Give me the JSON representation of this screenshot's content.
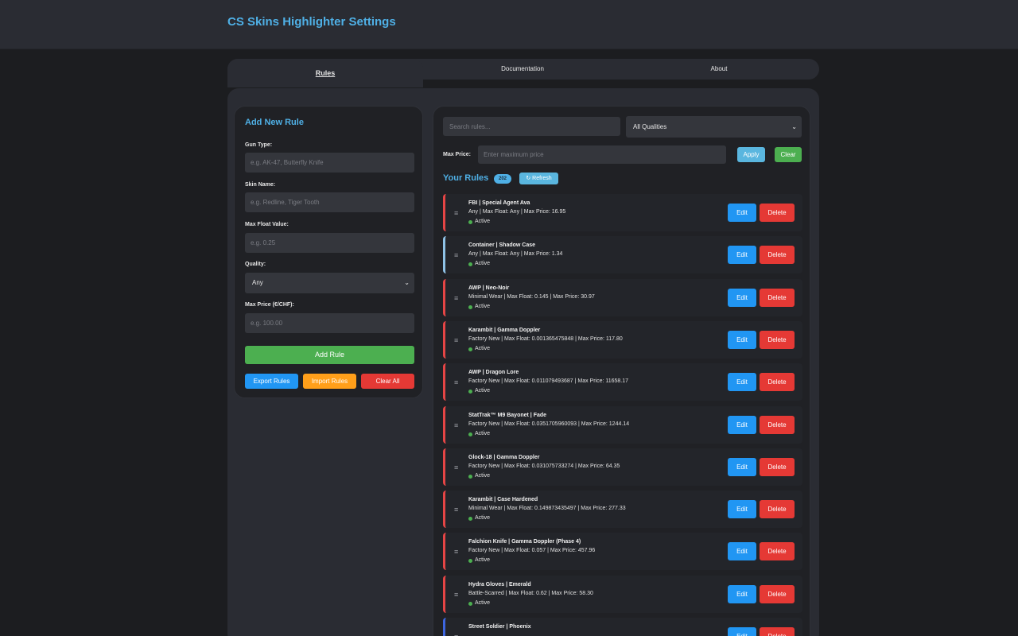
{
  "header": {
    "title": "CS Skins Highlighter Settings"
  },
  "tabs": [
    {
      "label": "Rules",
      "active": true
    },
    {
      "label": "Documentation",
      "active": false
    },
    {
      "label": "About",
      "active": false
    }
  ],
  "add_rule": {
    "title": "Add New Rule",
    "gun_type": {
      "label": "Gun Type:",
      "placeholder": "e.g. AK-47, Butterfly Knife"
    },
    "skin_name": {
      "label": "Skin Name:",
      "placeholder": "e.g. Redline, Tiger Tooth"
    },
    "max_float": {
      "label": "Max Float Value:",
      "placeholder": "e.g. 0.25"
    },
    "quality": {
      "label": "Quality:",
      "value": "Any"
    },
    "max_price": {
      "label": "Max Price (€/CHF):",
      "placeholder": "e.g. 100.00"
    },
    "add_button": "Add Rule",
    "export_button": "Export Rules",
    "import_button": "Import Rules",
    "clear_all_button": "Clear All"
  },
  "filters": {
    "search_placeholder": "Search rules...",
    "quality_value": "All Qualities",
    "max_price_label": "Max Price:",
    "max_price_placeholder": "Enter maximum price",
    "apply_button": "Apply",
    "clear_button": "Clear"
  },
  "rules_header": {
    "title": "Your Rules",
    "count": "202",
    "refresh": "Refresh"
  },
  "rules": [
    {
      "name": "FBI | Special Agent Ava",
      "details": "Any | Max Float: Any | Max Price: 16.95",
      "status": "Active",
      "edit": "Edit",
      "delete": "Delete"
    },
    {
      "name": "Container | Shadow Case",
      "details": "Any | Max Float: Any | Max Price: 1.34",
      "status": "Active",
      "edit": "Edit",
      "delete": "Delete"
    },
    {
      "name": "AWP | Neo-Noir",
      "details": "Minimal Wear | Max Float: 0.145 | Max Price: 30.97",
      "status": "Active",
      "edit": "Edit",
      "delete": "Delete"
    },
    {
      "name": "Karambit | Gamma Doppler",
      "details": "Factory New | Max Float: 0.001365475848 | Max Price: 117.80",
      "status": "Active",
      "edit": "Edit",
      "delete": "Delete"
    },
    {
      "name": "AWP | Dragon Lore",
      "details": "Factory New | Max Float: 0.011079493687 | Max Price: 11658.17",
      "status": "Active",
      "edit": "Edit",
      "delete": "Delete"
    },
    {
      "name": "StatTrak™ M9 Bayonet | Fade",
      "details": "Factory New | Max Float: 0.0351705960093 | Max Price: 1244.14",
      "status": "Active",
      "edit": "Edit",
      "delete": "Delete"
    },
    {
      "name": "Glock-18 | Gamma Doppler",
      "details": "Factory New | Max Float: 0.031075733274 | Max Price: 64.35",
      "status": "Active",
      "edit": "Edit",
      "delete": "Delete"
    },
    {
      "name": "Karambit | Case Hardened",
      "details": "Minimal Wear | Max Float: 0.149873435497 | Max Price: 277.33",
      "status": "Active",
      "edit": "Edit",
      "delete": "Delete"
    },
    {
      "name": "Falchion Knife | Gamma Doppler (Phase 4)",
      "details": "Factory New | Max Float: 0.057 | Max Price: 457.96",
      "status": "Active",
      "edit": "Edit",
      "delete": "Delete"
    },
    {
      "name": "Hydra Gloves | Emerald",
      "details": "Battle-Scarred | Max Float: 0.62 | Max Price: 58.30",
      "status": "Active",
      "edit": "Edit",
      "delete": "Delete"
    },
    {
      "name": "Street Soldier | Phoenix",
      "details": "",
      "status": "",
      "edit": "Edit",
      "delete": "Delete"
    }
  ],
  "colors": {
    "accent": "#4fb0e6",
    "rule_border_red": "#e54545",
    "rule_border_light_blue": "#8fc2e6",
    "rule_border_violet": "#3d66e0",
    "status_active": "#4caf50"
  }
}
